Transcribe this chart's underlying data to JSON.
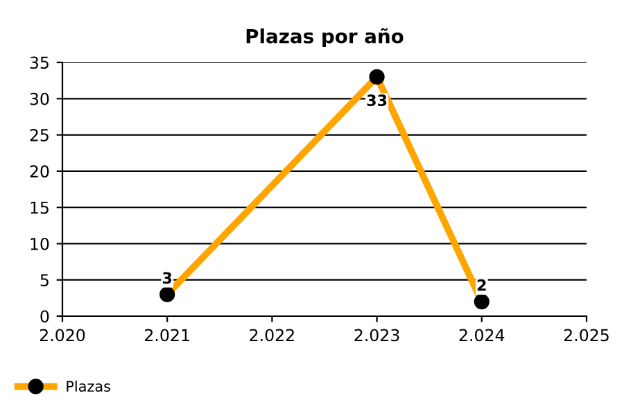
{
  "chart_data": {
    "type": "line",
    "title": "Plazas por año",
    "x": [
      2021,
      2023,
      2024
    ],
    "series": [
      {
        "name": "Plazas",
        "color": "#ffa500",
        "values": [
          3,
          33,
          2
        ]
      }
    ],
    "xlim": [
      2020,
      2025
    ],
    "xticks": [
      {
        "value": 2020,
        "label": "2.020"
      },
      {
        "value": 2021,
        "label": "2.021"
      },
      {
        "value": 2022,
        "label": "2.022"
      },
      {
        "value": 2023,
        "label": "2.023"
      },
      {
        "value": 2024,
        "label": "2.024"
      },
      {
        "value": 2025,
        "label": "2.025"
      }
    ],
    "ylim": [
      0,
      35
    ],
    "yticks": [
      0,
      5,
      10,
      15,
      20,
      25,
      30,
      35
    ],
    "grid": "y",
    "legend": "bottom left",
    "marker": "circle",
    "data_labels": true
  }
}
